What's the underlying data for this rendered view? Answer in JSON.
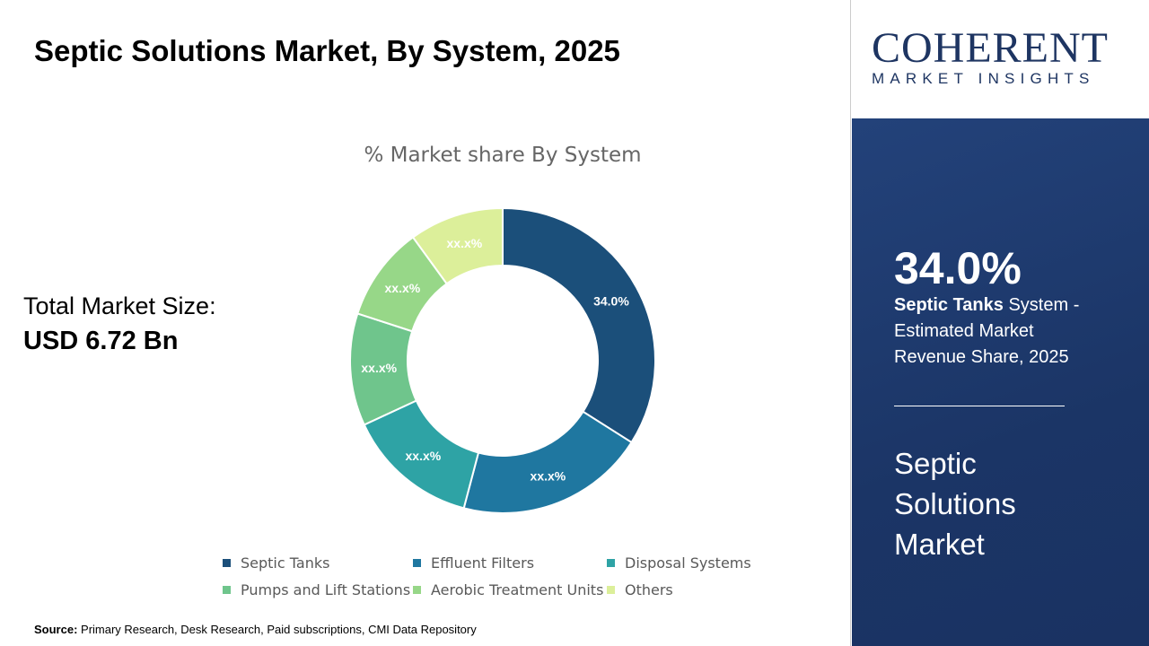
{
  "title": "Septic Solutions Market, By System, 2025",
  "total_market": {
    "label": "Total Market Size:",
    "value": "USD 6.72 Bn"
  },
  "source": {
    "label": "Source:",
    "text": "Primary Research, Desk Research, Paid subscriptions, CMI Data Repository"
  },
  "logo": {
    "name": "COHERENT",
    "tagline": "MARKET INSIGHTS"
  },
  "highlight": {
    "value": "34.0%",
    "segment": "Septic Tanks",
    "text1": " System -",
    "text2": "Estimated Market",
    "text3": "Revenue Share, 2025",
    "market_lines": [
      "Septic",
      "Solutions",
      "Market"
    ]
  },
  "chart_data": {
    "type": "pie",
    "donut": true,
    "title": "% Market share By System",
    "categories": [
      "Septic Tanks",
      "Effluent Filters",
      "Disposal Systems",
      "Pumps and Lift Stations",
      "Aerobic Treatment Units",
      "Others"
    ],
    "values": [
      34.0,
      20.1,
      14.0,
      11.9,
      10.0,
      10.0
    ],
    "data_labels": [
      "34.0%",
      "xx.x%",
      "xx.x%",
      "xx.x%",
      "xx.x%",
      "xx.x%"
    ],
    "colors": [
      "#1b4f7a",
      "#1f77a0",
      "#2ea3a5",
      "#6fc58c",
      "#97d788",
      "#dcef9a"
    ],
    "legend_position": "bottom"
  }
}
